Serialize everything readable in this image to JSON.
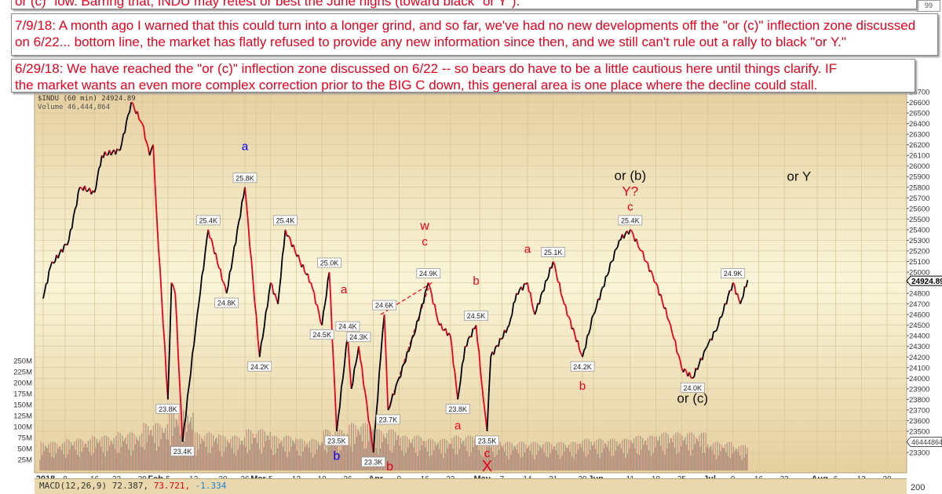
{
  "notes": [
    {
      "text": "or (c)\" low.  Barring that, INDU may retest or best the June highs (toward black \"or Y\")."
    },
    {
      "line1": "7/9/18:  A month ago I warned that this could turn into a longer grind, and so far, we've had no new developments off the \"or (c)\" inflection zone discussed",
      "line2": "on 6/22... bottom line, the market has flatly refused to provide any new information since then, and we still can't rule out a rally to black \"or Y.\""
    },
    {
      "line1": "6/29/18:  We have reached the \"or (c)\" inflection zone discussed on 6/22 -- so bears do have to be a little cautious here until things clarify.  IF",
      "line2": "the market wants an even more complex correction prior to the BIG C down, this general area is one place where the decline could stall."
    }
  ],
  "corner_box": "99",
  "header": {
    "symbol_line": "$INDU (60 min) 24924.89",
    "volume_line": "Volume 46,444,864"
  },
  "macd": {
    "label": "MACD(12,26,9)",
    "v1": "72.387,",
    "v2": "73.721,",
    "v3": "-1.334",
    "axis": "200"
  },
  "chart_data": {
    "type": "line",
    "title": "",
    "colors": {
      "up": "#000000",
      "down": "#e8001c",
      "volume_up": "#9a8f7c",
      "volume_down": "#d98077",
      "bg_edge": "#e5cf9f",
      "bg_center": "#faf5d8"
    },
    "price_axis": {
      "min": 23200,
      "max": 26700,
      "step": 100,
      "side": "right"
    },
    "volume_axis": {
      "ticks": [
        "25M",
        "50M",
        "75M",
        "100M",
        "125M",
        "150M",
        "175M",
        "200M",
        "225M",
        "250M"
      ],
      "values": [
        25,
        50,
        75,
        100,
        125,
        150,
        175,
        200,
        225,
        250
      ]
    },
    "last_price": {
      "value": 24924.89,
      "label": "24924.89"
    },
    "last_volume": {
      "label": "46444864"
    },
    "x_range": [
      "2018-01-01",
      "2018-08-27"
    ],
    "x_ticks": [
      {
        "date": "2018-01-02",
        "label": "2018",
        "bold": true
      },
      {
        "date": "2018-01-08",
        "label": "8"
      },
      {
        "date": "2018-01-16",
        "label": "16"
      },
      {
        "date": "2018-01-22",
        "label": "22"
      },
      {
        "date": "2018-01-29",
        "label": "29"
      },
      {
        "date": "2018-02-01",
        "label": "Feb",
        "bold": true
      },
      {
        "date": "2018-02-05",
        "label": "5"
      },
      {
        "date": "2018-02-12",
        "label": "12"
      },
      {
        "date": "2018-02-20",
        "label": "20"
      },
      {
        "date": "2018-02-26",
        "label": "26"
      },
      {
        "date": "2018-03-01",
        "label": "Mar",
        "bold": true
      },
      {
        "date": "2018-03-05",
        "label": "5"
      },
      {
        "date": "2018-03-12",
        "label": "12"
      },
      {
        "date": "2018-03-19",
        "label": "19"
      },
      {
        "date": "2018-03-26",
        "label": "26"
      },
      {
        "date": "2018-04-02",
        "label": "Apr",
        "bold": true
      },
      {
        "date": "2018-04-09",
        "label": "9"
      },
      {
        "date": "2018-04-16",
        "label": "16"
      },
      {
        "date": "2018-04-23",
        "label": "23"
      },
      {
        "date": "2018-05-01",
        "label": "May",
        "bold": true
      },
      {
        "date": "2018-05-07",
        "label": "7"
      },
      {
        "date": "2018-05-14",
        "label": "14"
      },
      {
        "date": "2018-05-21",
        "label": "21"
      },
      {
        "date": "2018-05-29",
        "label": "29"
      },
      {
        "date": "2018-06-01",
        "label": "Jun",
        "bold": true
      },
      {
        "date": "2018-06-11",
        "label": "11"
      },
      {
        "date": "2018-06-18",
        "label": "18"
      },
      {
        "date": "2018-06-25",
        "label": "25"
      },
      {
        "date": "2018-07-02",
        "label": "Jul",
        "bold": true
      },
      {
        "date": "2018-07-09",
        "label": "9"
      },
      {
        "date": "2018-07-16",
        "label": "16"
      },
      {
        "date": "2018-07-23",
        "label": "23"
      },
      {
        "date": "2018-08-01",
        "label": "Aug",
        "bold": true
      },
      {
        "date": "2018-08-06",
        "label": "6"
      },
      {
        "date": "2018-08-13",
        "label": "13"
      },
      {
        "date": "2018-08-20",
        "label": "20"
      }
    ],
    "series": [
      {
        "points": [
          [
            "2018-01-02",
            24750
          ],
          [
            "2018-01-04",
            25050
          ],
          [
            "2018-01-09",
            25300
          ],
          [
            "2018-01-12",
            25800
          ],
          [
            "2018-01-16",
            25750
          ],
          [
            "2018-01-18",
            26100
          ],
          [
            "2018-01-23",
            26150
          ],
          [
            "2018-01-26",
            26600
          ],
          [
            "2018-01-29",
            26400
          ],
          [
            "2018-01-31",
            26100
          ],
          [
            "2018-02-01",
            26200
          ],
          [
            "2018-02-02",
            25500
          ],
          [
            "2018-02-05",
            23800
          ],
          [
            "2018-02-06",
            24900
          ],
          [
            "2018-02-07",
            24800
          ],
          [
            "2018-02-09",
            23400
          ],
          [
            "2018-02-13",
            24600
          ],
          [
            "2018-02-16",
            25400
          ],
          [
            "2018-02-21",
            24800
          ],
          [
            "2018-02-26",
            25800
          ],
          [
            "2018-03-02",
            24200
          ],
          [
            "2018-03-05",
            24900
          ],
          [
            "2018-03-07",
            24700
          ],
          [
            "2018-03-09",
            25400
          ],
          [
            "2018-03-13",
            25100
          ],
          [
            "2018-03-16",
            24900
          ],
          [
            "2018-03-19",
            24500
          ],
          [
            "2018-03-21",
            25000
          ],
          [
            "2018-03-23",
            23500
          ],
          [
            "2018-03-26",
            24400
          ],
          [
            "2018-03-27",
            23900
          ],
          [
            "2018-03-29",
            24300
          ],
          [
            "2018-04-02",
            23300
          ],
          [
            "2018-04-04",
            24200
          ],
          [
            "2018-04-05",
            24600
          ],
          [
            "2018-04-06",
            23700
          ],
          [
            "2018-04-09",
            24000
          ],
          [
            "2018-04-13",
            24400
          ],
          [
            "2018-04-17",
            24900
          ],
          [
            "2018-04-20",
            24500
          ],
          [
            "2018-04-23",
            24400
          ],
          [
            "2018-04-25",
            23800
          ],
          [
            "2018-04-27",
            24300
          ],
          [
            "2018-04-30",
            24500
          ],
          [
            "2018-05-02",
            23800
          ],
          [
            "2018-05-03",
            23500
          ],
          [
            "2018-05-04",
            24200
          ],
          [
            "2018-05-09",
            24500
          ],
          [
            "2018-05-11",
            24800
          ],
          [
            "2018-05-14",
            24900
          ],
          [
            "2018-05-16",
            24600
          ],
          [
            "2018-05-21",
            25100
          ],
          [
            "2018-05-24",
            24700
          ],
          [
            "2018-05-29",
            24200
          ],
          [
            "2018-06-01",
            24600
          ],
          [
            "2018-06-06",
            25100
          ],
          [
            "2018-06-08",
            25300
          ],
          [
            "2018-06-11",
            25400
          ],
          [
            "2018-06-14",
            25200
          ],
          [
            "2018-06-18",
            24900
          ],
          [
            "2018-06-22",
            24500
          ],
          [
            "2018-06-25",
            24100
          ],
          [
            "2018-06-28",
            24000
          ],
          [
            "2018-07-02",
            24300
          ],
          [
            "2018-07-05",
            24500
          ],
          [
            "2018-07-09",
            24900
          ],
          [
            "2018-07-11",
            24700
          ],
          [
            "2018-07-13",
            24925
          ]
        ]
      }
    ],
    "weekly_volume_m": [
      [
        "2018-01-01",
        45
      ],
      [
        "2018-01-08",
        50
      ],
      [
        "2018-01-15",
        55
      ],
      [
        "2018-01-22",
        60
      ],
      [
        "2018-01-29",
        75
      ],
      [
        "2018-02-05",
        95
      ],
      [
        "2018-02-12",
        60
      ],
      [
        "2018-02-19",
        55
      ],
      [
        "2018-02-26",
        65
      ],
      [
        "2018-03-05",
        55
      ],
      [
        "2018-03-12",
        50
      ],
      [
        "2018-03-19",
        65
      ],
      [
        "2018-03-26",
        75
      ],
      [
        "2018-04-02",
        65
      ],
      [
        "2018-04-09",
        55
      ],
      [
        "2018-04-16",
        50
      ],
      [
        "2018-04-23",
        55
      ],
      [
        "2018-04-30",
        50
      ],
      [
        "2018-05-07",
        45
      ],
      [
        "2018-05-14",
        45
      ],
      [
        "2018-05-21",
        45
      ],
      [
        "2018-05-28",
        50
      ],
      [
        "2018-06-04",
        50
      ],
      [
        "2018-06-11",
        55
      ],
      [
        "2018-06-18",
        60
      ],
      [
        "2018-06-25",
        60
      ],
      [
        "2018-07-02",
        45
      ],
      [
        "2018-07-09",
        40
      ]
    ],
    "price_labels": [
      {
        "date": "2018-01-26",
        "price": 26600,
        "label": "",
        "pos": "none"
      },
      {
        "date": "2018-02-05",
        "price": 23800,
        "label": "23.8K",
        "pos": "below"
      },
      {
        "date": "2018-02-09",
        "price": 23400,
        "label": "23.4K",
        "pos": "below"
      },
      {
        "date": "2018-02-16",
        "price": 25400,
        "label": "25.4K",
        "pos": "above"
      },
      {
        "date": "2018-02-21",
        "price": 24800,
        "label": "24.8K",
        "pos": "below"
      },
      {
        "date": "2018-02-26",
        "price": 25800,
        "label": "25.8K",
        "pos": "above"
      },
      {
        "date": "2018-03-02",
        "price": 24200,
        "label": "24.2K",
        "pos": "below"
      },
      {
        "date": "2018-03-09",
        "price": 25400,
        "label": "25.4K",
        "pos": "above"
      },
      {
        "date": "2018-03-19",
        "price": 24500,
        "label": "24.5K",
        "pos": "below"
      },
      {
        "date": "2018-03-21",
        "price": 25000,
        "label": "25.0K",
        "pos": "above"
      },
      {
        "date": "2018-03-23",
        "price": 23500,
        "label": "23.5K",
        "pos": "below"
      },
      {
        "date": "2018-03-26",
        "price": 24400,
        "label": "24.4K",
        "pos": "above"
      },
      {
        "date": "2018-03-29",
        "price": 24300,
        "label": "24.3K",
        "pos": "above"
      },
      {
        "date": "2018-04-02",
        "price": 23300,
        "label": "23.3K",
        "pos": "below"
      },
      {
        "date": "2018-04-05",
        "price": 24600,
        "label": "24.6K",
        "pos": "above"
      },
      {
        "date": "2018-04-06",
        "price": 23700,
        "label": "23.7K",
        "pos": "below"
      },
      {
        "date": "2018-04-17",
        "price": 24900,
        "label": "24.9K",
        "pos": "above"
      },
      {
        "date": "2018-04-25",
        "price": 23800,
        "label": "23.8K",
        "pos": "below"
      },
      {
        "date": "2018-04-30",
        "price": 24500,
        "label": "24.5K",
        "pos": "above"
      },
      {
        "date": "2018-05-03",
        "price": 23500,
        "label": "23.5K",
        "pos": "below"
      },
      {
        "date": "2018-05-21",
        "price": 25100,
        "label": "25.1K",
        "pos": "above"
      },
      {
        "date": "2018-05-29",
        "price": 24200,
        "label": "24.2K",
        "pos": "below"
      },
      {
        "date": "2018-06-11",
        "price": 25400,
        "label": "25.4K",
        "pos": "above"
      },
      {
        "date": "2018-06-28",
        "price": 24000,
        "label": "24.0K",
        "pos": "below"
      },
      {
        "date": "2018-07-09",
        "price": 24900,
        "label": "24.9K",
        "pos": "above"
      }
    ],
    "wave_labels": [
      {
        "text": "a",
        "color": "#0000ff",
        "date": "2018-02-26",
        "price": 26150,
        "size": 15
      },
      {
        "text": "b",
        "color": "#0000ff",
        "date": "2018-03-23",
        "price": 23230,
        "size": 16
      },
      {
        "text": "b",
        "color": "#e8001c",
        "date": "2018-04-02",
        "price": 22980,
        "size": 16
      },
      {
        "text": "a",
        "color": "#e8001c",
        "date": "2018-03-25",
        "price": 24800,
        "size": 15
      },
      {
        "text": "w",
        "color": "#e8001c",
        "date": "2018-04-16",
        "price": 25400,
        "size": 16
      },
      {
        "text": "c",
        "color": "#e8001c",
        "date": "2018-04-16",
        "price": 25250,
        "size": 15
      },
      {
        "text": "b",
        "color": "#e8001c",
        "date": "2018-04-30",
        "price": 24880,
        "size": 15
      },
      {
        "text": "a",
        "color": "#e8001c",
        "date": "2018-04-25",
        "price": 23520,
        "size": 15
      },
      {
        "text": "c",
        "color": "#e8001c",
        "date": "2018-05-03",
        "price": 23220,
        "size": 15
      },
      {
        "text": "X",
        "color": "#e8001c",
        "date": "2018-05-03",
        "price": 23080,
        "size": 20
      },
      {
        "text": "a",
        "color": "#e8001c",
        "date": "2018-05-14",
        "price": 25180,
        "size": 15
      },
      {
        "text": "b",
        "color": "#e8001c",
        "date": "2018-05-29",
        "price": 24020,
        "size": 15
      },
      {
        "text": "or (b)",
        "color": "#111111",
        "date": "2018-06-11",
        "price": 25870,
        "size": 17
      },
      {
        "text": "Y?",
        "color": "#e8001c",
        "date": "2018-06-11",
        "price": 25720,
        "size": 17
      },
      {
        "text": "c",
        "color": "#e8001c",
        "date": "2018-06-11",
        "price": 25580,
        "size": 15
      },
      {
        "text": "or Y",
        "color": "#111111",
        "date": "2018-07-27",
        "price": 25860,
        "size": 17
      },
      {
        "text": "or (c)",
        "color": "#111111",
        "date": "2018-06-28",
        "price": 23770,
        "size": 17
      }
    ],
    "trend_lines": [
      {
        "from": [
          "2018-04-06",
          23700
        ],
        "to": [
          "2018-04-17",
          24850
        ],
        "style": "dashed",
        "color": "#e8001c"
      },
      {
        "from": [
          "2018-04-04",
          24600
        ],
        "to": [
          "2018-04-18",
          24900
        ],
        "style": "dashed",
        "color": "#e8001c"
      }
    ]
  }
}
